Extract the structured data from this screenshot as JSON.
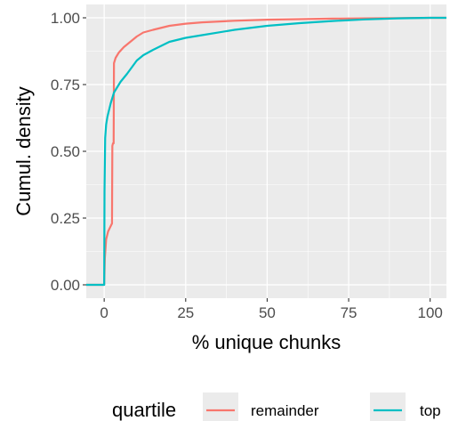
{
  "chart_data": {
    "type": "line",
    "xlabel": "% unique chunks",
    "ylabel": "Cumul. density",
    "xlim": [
      -5.5,
      105
    ],
    "ylim": [
      -0.05,
      1.05
    ],
    "x_ticks": [
      0,
      25,
      50,
      75,
      100
    ],
    "x_tick_labels": [
      "0",
      "25",
      "50",
      "75",
      "100"
    ],
    "y_ticks": [
      0,
      0.25,
      0.5,
      0.75,
      1.0
    ],
    "y_tick_labels": [
      "0.00",
      "0.25",
      "0.50",
      "0.75",
      "1.00"
    ],
    "grid": true,
    "legend": {
      "title": "quartile",
      "position": "bottom"
    },
    "series": [
      {
        "name": "remainder",
        "color": "#F8766D",
        "points": [
          [
            -5.5,
            0
          ],
          [
            0,
            0
          ],
          [
            0.2,
            0.1
          ],
          [
            0.6,
            0.17
          ],
          [
            1.2,
            0.2
          ],
          [
            2.0,
            0.22
          ],
          [
            2.4,
            0.23
          ],
          [
            2.5,
            0.52
          ],
          [
            2.7,
            0.53
          ],
          [
            2.9,
            0.53
          ],
          [
            3.0,
            0.83
          ],
          [
            3.5,
            0.85
          ],
          [
            4.5,
            0.87
          ],
          [
            6,
            0.89
          ],
          [
            8,
            0.91
          ],
          [
            10,
            0.93
          ],
          [
            12,
            0.945
          ],
          [
            15,
            0.955
          ],
          [
            20,
            0.97
          ],
          [
            25,
            0.978
          ],
          [
            30,
            0.983
          ],
          [
            40,
            0.989
          ],
          [
            50,
            0.993
          ],
          [
            60,
            0.995
          ],
          [
            70,
            0.997
          ],
          [
            80,
            0.998
          ],
          [
            90,
            0.999
          ],
          [
            100,
            1.0
          ],
          [
            105,
            1.0
          ]
        ]
      },
      {
        "name": "top",
        "color": "#00BFC4",
        "points": [
          [
            -5.5,
            0
          ],
          [
            0,
            0
          ],
          [
            0.1,
            0.35
          ],
          [
            0.3,
            0.55
          ],
          [
            0.6,
            0.6
          ],
          [
            1.0,
            0.63
          ],
          [
            2.0,
            0.68
          ],
          [
            3,
            0.72
          ],
          [
            5,
            0.76
          ],
          [
            7,
            0.79
          ],
          [
            10,
            0.84
          ],
          [
            12,
            0.86
          ],
          [
            15,
            0.88
          ],
          [
            20,
            0.91
          ],
          [
            25,
            0.925
          ],
          [
            30,
            0.935
          ],
          [
            40,
            0.955
          ],
          [
            50,
            0.97
          ],
          [
            60,
            0.98
          ],
          [
            70,
            0.988
          ],
          [
            80,
            0.994
          ],
          [
            90,
            0.998
          ],
          [
            100,
            1.0
          ],
          [
            105,
            1.0
          ]
        ]
      }
    ]
  }
}
